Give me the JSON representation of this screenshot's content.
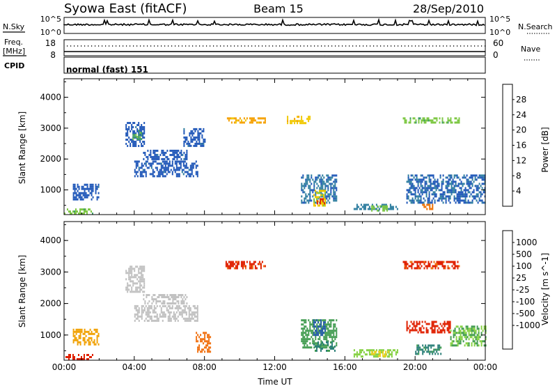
{
  "header": {
    "station": "Syowa East (fitACF)",
    "beam": "Beam 15",
    "date": "28/Sep/2010"
  },
  "nsky_panel": {
    "label": "N.Sky",
    "right_label": "N.Search",
    "left_ticks": [
      "10^5",
      "10^0"
    ],
    "right_ticks": [
      "10^5",
      "10^0"
    ]
  },
  "freq_panel": {
    "label_line1": "Freq.",
    "label_line2": "[MHz]",
    "right_label": "Nave",
    "left_ticks": [
      "18",
      "8"
    ],
    "right_ticks": [
      "60",
      "0"
    ]
  },
  "cpid_panel": {
    "label": "CPID",
    "text": "normal (fast) 151"
  },
  "colors": {
    "power_scale": [
      "#1428e0",
      "#1f56b8",
      "#2f7ea0",
      "#3f9b6a",
      "#7ec844",
      "#f0c800",
      "#f5a000",
      "#f07000",
      "#e02c00",
      "#d00000"
    ],
    "velocity_scale": [
      "#1d3fd4",
      "#2860a8",
      "#2a7f78",
      "#3f9b4e",
      "#84d040",
      "#c0c0c0",
      "#f0d020",
      "#f0a000",
      "#f07010",
      "#e02000"
    ]
  },
  "chart_data": [
    {
      "type": "heatmap",
      "panel": "power",
      "ylabel": "Slant Range [km]",
      "ylim": [
        200,
        4600
      ],
      "yticks": [
        1000,
        2000,
        3000,
        4000
      ],
      "xlim": [
        0,
        24
      ],
      "colorbar": {
        "label": "Power [dB]",
        "ticks": [
          "4",
          "8",
          "12",
          "16",
          "20",
          "24",
          "28"
        ],
        "range": [
          0,
          32
        ]
      },
      "patches": [
        {
          "t0": 0.0,
          "t1": 1.6,
          "r0": 250,
          "r1": 400,
          "v": 14
        },
        {
          "t0": 0.5,
          "t1": 2.0,
          "r0": 700,
          "r1": 1200,
          "v": 5
        },
        {
          "t0": 3.5,
          "t1": 4.6,
          "r0": 2400,
          "r1": 3200,
          "v": 5
        },
        {
          "t0": 3.9,
          "t1": 4.4,
          "r0": 2650,
          "r1": 2950,
          "v": 12
        },
        {
          "t0": 4.0,
          "t1": 7.6,
          "r0": 1450,
          "r1": 1950,
          "v": 5
        },
        {
          "t0": 4.5,
          "t1": 7.0,
          "r0": 2000,
          "r1": 2300,
          "v": 5
        },
        {
          "t0": 6.8,
          "t1": 8.0,
          "r0": 2400,
          "r1": 3000,
          "v": 5
        },
        {
          "t0": 9.2,
          "t1": 11.5,
          "r0": 3150,
          "r1": 3350,
          "v": 20
        },
        {
          "t0": 12.7,
          "t1": 14.0,
          "r0": 3150,
          "r1": 3400,
          "v": 18
        },
        {
          "t0": 13.5,
          "t1": 15.5,
          "r0": 600,
          "r1": 1500,
          "v": 7
        },
        {
          "t0": 14.2,
          "t1": 14.9,
          "r0": 500,
          "r1": 1000,
          "v": 17
        },
        {
          "t0": 14.4,
          "t1": 14.8,
          "r0": 550,
          "r1": 800,
          "v": 27
        },
        {
          "t0": 16.5,
          "t1": 19.0,
          "r0": 350,
          "r1": 550,
          "v": 8
        },
        {
          "t0": 17.5,
          "t1": 18.5,
          "r0": 350,
          "r1": 500,
          "v": 14
        },
        {
          "t0": 19.5,
          "t1": 24.0,
          "r0": 600,
          "r1": 1500,
          "v": 6
        },
        {
          "t0": 20.4,
          "t1": 21.0,
          "r0": 350,
          "r1": 550,
          "v": 24
        },
        {
          "t0": 19.3,
          "t1": 22.5,
          "r0": 3150,
          "r1": 3350,
          "v": 14
        }
      ]
    },
    {
      "type": "heatmap",
      "panel": "velocity",
      "ylabel": "Slant Range [km]",
      "xlabel": "Time UT",
      "ylim": [
        200,
        4600
      ],
      "yticks": [
        1000,
        2000,
        3000,
        4000
      ],
      "xlim": [
        0,
        24
      ],
      "xticks": [
        "00:00",
        "04:00",
        "08:00",
        "12:00",
        "16:00",
        "20:00",
        "00:00"
      ],
      "colorbar": {
        "label": "Velocity [m s^-1]",
        "ticks": [
          "1000",
          "500",
          "100",
          "25",
          "-25",
          "-100",
          "-500",
          "-1000"
        ]
      },
      "patches": [
        {
          "t0": 0.0,
          "t1": 1.6,
          "r0": 250,
          "r1": 400,
          "v": -700
        },
        {
          "t0": 0.5,
          "t1": 2.0,
          "r0": 700,
          "r1": 1200,
          "v": -150
        },
        {
          "t0": 3.5,
          "t1": 4.6,
          "r0": 2400,
          "r1": 3200,
          "v": 0
        },
        {
          "t0": 4.0,
          "t1": 7.6,
          "r0": 1450,
          "r1": 1950,
          "v": 0
        },
        {
          "t0": 4.5,
          "t1": 7.0,
          "r0": 2000,
          "r1": 2300,
          "v": 10
        },
        {
          "t0": 7.5,
          "t1": 8.3,
          "r0": 500,
          "r1": 1100,
          "v": -400
        },
        {
          "t0": 9.2,
          "t1": 11.5,
          "r0": 3150,
          "r1": 3350,
          "v": -600
        },
        {
          "t0": 13.5,
          "t1": 15.5,
          "r0": 600,
          "r1": 1500,
          "v": 200
        },
        {
          "t0": 14.2,
          "t1": 14.9,
          "r0": 1000,
          "r1": 1500,
          "v": 800
        },
        {
          "t0": 14.2,
          "t1": 15.4,
          "r0": 500,
          "r1": 800,
          "v": 300
        },
        {
          "t0": 16.5,
          "t1": 19.0,
          "r0": 350,
          "r1": 550,
          "v": 80
        },
        {
          "t0": 17.5,
          "t1": 18.5,
          "r0": 350,
          "r1": 500,
          "v": -60
        },
        {
          "t0": 19.5,
          "t1": 22.0,
          "r0": 1100,
          "r1": 1450,
          "v": -700
        },
        {
          "t0": 20.0,
          "t1": 21.5,
          "r0": 400,
          "r1": 700,
          "v": 300
        },
        {
          "t0": 22.0,
          "t1": 24.0,
          "r0": 700,
          "r1": 1300,
          "v": 100
        },
        {
          "t0": 19.3,
          "t1": 22.5,
          "r0": 3150,
          "r1": 3350,
          "v": -600
        }
      ]
    }
  ]
}
